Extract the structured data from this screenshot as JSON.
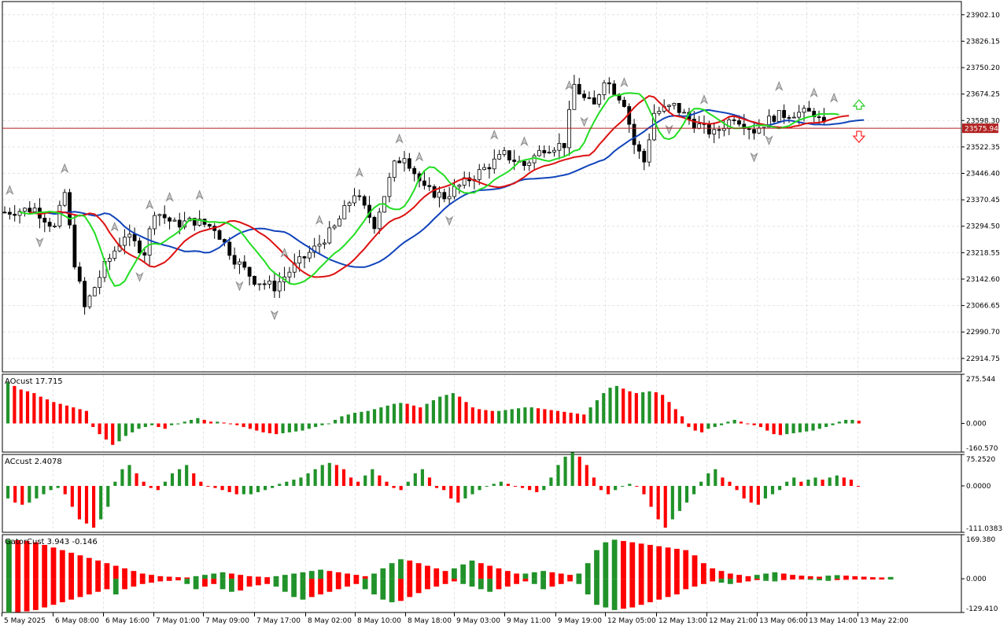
{
  "colors": {
    "up": "#21922a",
    "down": "#ff0000",
    "green_line": "#22dd22",
    "red_line": "#dd1111",
    "blue_line": "#1144bb",
    "price_line": "#b22222",
    "grid": "#e4e4e4",
    "border": "#000000",
    "text": "#000000"
  },
  "chart_data": [
    {
      "type": "candlestick",
      "name": "main",
      "ylim": [
        22876,
        23940
      ],
      "y_ticks": [
        "23902.10",
        "23826.15",
        "23750.20",
        "23674.25",
        "23598.30",
        "23522.35",
        "23446.40",
        "23370.45",
        "23294.50",
        "23218.55",
        "23142.60",
        "23066.65",
        "22990.70",
        "22914.75"
      ],
      "current_price_label": "23575.94",
      "current_price": 23575.94,
      "bars": 178,
      "close_path": [
        [
          0,
          23335
        ],
        [
          6,
          23345
        ],
        [
          10,
          23290
        ],
        [
          12,
          23390
        ],
        [
          14,
          23190
        ],
        [
          16,
          23060
        ],
        [
          20,
          23180
        ],
        [
          24,
          23270
        ],
        [
          28,
          23220
        ],
        [
          30,
          23340
        ],
        [
          34,
          23300
        ],
        [
          38,
          23310
        ],
        [
          42,
          23290
        ],
        [
          46,
          23200
        ],
        [
          50,
          23140
        ],
        [
          54,
          23120
        ],
        [
          58,
          23180
        ],
        [
          62,
          23230
        ],
        [
          66,
          23290
        ],
        [
          70,
          23390
        ],
        [
          74,
          23300
        ],
        [
          78,
          23470
        ],
        [
          80,
          23500
        ],
        [
          84,
          23400
        ],
        [
          88,
          23380
        ],
        [
          92,
          23420
        ],
        [
          96,
          23460
        ],
        [
          100,
          23500
        ],
        [
          104,
          23470
        ],
        [
          108,
          23520
        ],
        [
          112,
          23530
        ],
        [
          114,
          23700
        ],
        [
          116,
          23660
        ],
        [
          118,
          23640
        ],
        [
          120,
          23720
        ],
        [
          124,
          23650
        ],
        [
          126,
          23530
        ],
        [
          128,
          23480
        ],
        [
          130,
          23620
        ],
        [
          134,
          23640
        ],
        [
          138,
          23590
        ],
        [
          142,
          23560
        ],
        [
          146,
          23610
        ],
        [
          150,
          23570
        ],
        [
          154,
          23610
        ],
        [
          158,
          23620
        ],
        [
          162,
          23620
        ],
        [
          164,
          23580
        ]
      ],
      "signals": [
        {
          "bar": 1,
          "kind": "fractal-up"
        },
        {
          "bar": 7,
          "kind": "fractal-down"
        },
        {
          "bar": 12,
          "kind": "fractal-up"
        },
        {
          "bar": 22,
          "kind": "fractal-up"
        },
        {
          "bar": 27,
          "kind": "fractal-down"
        },
        {
          "bar": 29,
          "kind": "fractal-up"
        },
        {
          "bar": 33,
          "kind": "fractal-up"
        },
        {
          "bar": 39,
          "kind": "fractal-up"
        },
        {
          "bar": 47,
          "kind": "fractal-down"
        },
        {
          "bar": 54,
          "kind": "fractal-down"
        },
        {
          "bar": 56,
          "kind": "fractal-up"
        },
        {
          "bar": 63,
          "kind": "fractal-up"
        },
        {
          "bar": 71,
          "kind": "fractal-up"
        },
        {
          "bar": 79,
          "kind": "fractal-up"
        },
        {
          "bar": 83,
          "kind": "fractal-up"
        },
        {
          "bar": 89,
          "kind": "fractal-down"
        },
        {
          "bar": 98,
          "kind": "fractal-up"
        },
        {
          "bar": 104,
          "kind": "fractal-up"
        },
        {
          "bar": 113,
          "kind": "fractal-up"
        },
        {
          "bar": 116,
          "kind": "fractal-down"
        },
        {
          "bar": 124,
          "kind": "fractal-up"
        },
        {
          "bar": 133,
          "kind": "fractal-down"
        },
        {
          "bar": 140,
          "kind": "fractal-up"
        },
        {
          "bar": 150,
          "kind": "fractal-down"
        },
        {
          "bar": 153,
          "kind": "fractal-down"
        },
        {
          "bar": 155,
          "kind": "fractal-up"
        },
        {
          "bar": 162,
          "kind": "fractal-up"
        },
        {
          "bar": 166,
          "kind": "fractal-up"
        },
        {
          "bar": 171,
          "kind": "buy-arrow"
        },
        {
          "bar": 171,
          "kind": "sell-arrow"
        }
      ]
    },
    {
      "type": "bar",
      "name": "AOcust",
      "title": "AOcust 17.715",
      "y_ticks": [
        "275.544",
        "0.000",
        "-160.570"
      ],
      "ylim": [
        -160.57,
        275.544
      ],
      "values": [
        230,
        210,
        190,
        180,
        170,
        150,
        135,
        120,
        110,
        100,
        90,
        80,
        70,
        -20,
        -60,
        -90,
        -120,
        -100,
        -70,
        -50,
        -30,
        -20,
        -10,
        -20,
        -30,
        -10,
        -5,
        10,
        20,
        30,
        20,
        10,
        10,
        5,
        0,
        -10,
        -20,
        -30,
        -40,
        -50,
        -55,
        -60,
        -55,
        -50,
        -45,
        -40,
        -30,
        -20,
        -10,
        0,
        20,
        40,
        50,
        60,
        65,
        70,
        80,
        90,
        100,
        110,
        115,
        110,
        100,
        90,
        110,
        130,
        150,
        160,
        170,
        150,
        120,
        90,
        80,
        75,
        70,
        70,
        75,
        80,
        85,
        90,
        90,
        85,
        80,
        75,
        70,
        65,
        60,
        55,
        50,
        90,
        130,
        170,
        200,
        210,
        195,
        180,
        170,
        175,
        180,
        175,
        160,
        120,
        80,
        40,
        -20,
        -40,
        -50,
        -30,
        -20,
        -10,
        10,
        20,
        10,
        0,
        -10,
        -20,
        -40,
        -60,
        -65,
        -60,
        -55,
        -50,
        -45,
        -40,
        -30,
        -20,
        -10,
        10,
        20,
        20,
        15
      ]
    },
    {
      "type": "bar",
      "name": "ACcust",
      "title": "ACcust 2.4078",
      "y_ticks": [
        "75.2520",
        "0.0000",
        "-111.0383"
      ],
      "ylim": [
        -111.0383,
        75.252
      ],
      "values": [
        -30,
        -40,
        -45,
        -40,
        -30,
        -20,
        -10,
        -5,
        -20,
        -50,
        -80,
        -90,
        -100,
        -80,
        -50,
        10,
        40,
        50,
        30,
        10,
        -5,
        -10,
        10,
        30,
        40,
        50,
        30,
        10,
        0,
        -5,
        -10,
        -15,
        -20,
        -20,
        -20,
        -15,
        -10,
        -5,
        5,
        10,
        15,
        20,
        30,
        40,
        50,
        55,
        50,
        40,
        20,
        10,
        25,
        40,
        25,
        10,
        -5,
        -10,
        10,
        30,
        40,
        20,
        -5,
        -10,
        -30,
        -40,
        -30,
        -20,
        -10,
        0,
        5,
        10,
        5,
        0,
        -5,
        -10,
        -15,
        -10,
        20,
        50,
        70,
        80,
        70,
        50,
        20,
        -10,
        -20,
        -10,
        0,
        5,
        0,
        -20,
        -50,
        -80,
        -100,
        -80,
        -60,
        -40,
        -20,
        10,
        30,
        40,
        20,
        10,
        -10,
        -30,
        -40,
        -45,
        -30,
        -20,
        -10,
        10,
        20,
        10,
        15,
        20,
        15,
        20,
        25,
        20,
        15,
        0
      ]
    },
    {
      "type": "bar",
      "name": "GatorCust",
      "title": "GatorCust 3.943 -0.146",
      "y_ticks": [
        "169.380",
        "0.000",
        "-129.410"
      ],
      "ylim": [
        -129.41,
        169.38
      ],
      "upper": [
        150,
        148,
        145,
        140,
        130,
        120,
        110,
        100,
        90,
        80,
        70,
        60,
        50,
        40,
        30,
        20,
        15,
        10,
        8,
        6,
        5,
        10,
        15,
        20,
        25,
        20,
        15,
        10,
        8,
        6,
        10,
        15,
        20,
        25,
        30,
        35,
        30,
        25,
        20,
        15,
        10,
        20,
        40,
        60,
        75,
        70,
        60,
        50,
        40,
        30,
        40,
        55,
        70,
        60,
        50,
        40,
        30,
        20,
        20,
        25,
        30,
        25,
        20,
        15,
        20,
        60,
        110,
        140,
        150,
        145,
        140,
        135,
        130,
        125,
        120,
        115,
        110,
        90,
        60,
        40,
        30,
        20,
        15,
        10,
        15,
        20,
        25,
        20,
        15,
        12,
        10,
        8,
        12,
        14,
        12,
        10,
        8,
        6,
        5,
        7
      ],
      "lower": [
        -130,
        -128,
        -125,
        -120,
        -110,
        -100,
        -90,
        -80,
        -70,
        -60,
        -50,
        -40,
        -60,
        -40,
        -30,
        -20,
        -15,
        -10,
        -8,
        -6,
        -20,
        -40,
        -30,
        -20,
        -40,
        -50,
        -45,
        -30,
        -25,
        -20,
        -30,
        -50,
        -70,
        -80,
        -70,
        -60,
        -50,
        -40,
        -30,
        -20,
        -40,
        -60,
        -80,
        -90,
        -85,
        -70,
        -55,
        -40,
        -30,
        -20,
        -10,
        -20,
        -30,
        -40,
        -50,
        -40,
        -30,
        -20,
        -10,
        -20,
        -40,
        -30,
        -20,
        -10,
        -20,
        -60,
        -100,
        -110,
        -120,
        -115,
        -110,
        -100,
        -90,
        -80,
        -70,
        -60,
        -40,
        -30,
        -20,
        -10,
        -15,
        -20,
        -15,
        -10,
        -5,
        -8,
        -10,
        -5,
        -3,
        -2,
        -4,
        -6,
        -8,
        -5,
        -4,
        -3,
        -2,
        -1,
        0,
        0
      ]
    }
  ],
  "x_axis_labels": [
    "5 May 2025",
    "6 May 08:00",
    "6 May 16:00",
    "7 May 01:00",
    "7 May 09:00",
    "7 May 17:00",
    "8 May 02:00",
    "8 May 10:00",
    "8 May 18:00",
    "9 May 03:00",
    "9 May 11:00",
    "9 May 19:00",
    "12 May 05:00",
    "12 May 13:00",
    "12 May 21:00",
    "13 May 06:00",
    "13 May 14:00",
    "13 May 22:00"
  ]
}
